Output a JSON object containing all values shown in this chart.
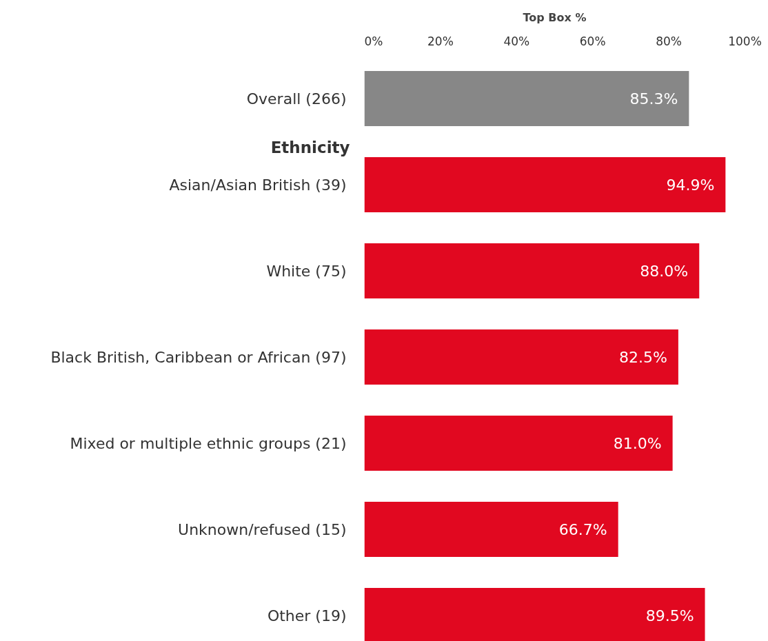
{
  "chart_data": {
    "type": "bar",
    "orientation": "horizontal",
    "xlabel": "Top Box %",
    "categories": [
      "Overall (266)",
      "Asian/Asian British (39)",
      "White (75)",
      "Black British, Caribbean or African (97)",
      "Mixed or multiple ethnic groups (21)",
      "Unknown/refused (15)",
      "Other (19)"
    ],
    "values": [
      85.3,
      94.9,
      88.0,
      82.5,
      81.0,
      66.7,
      89.5
    ],
    "colors": [
      "#878787",
      "#e10820",
      "#e10820",
      "#e10820",
      "#e10820",
      "#e10820",
      "#e10820"
    ],
    "value_labels": [
      "85.3%",
      "94.9%",
      "88.0%",
      "82.5%",
      "81.0%",
      "66.7%",
      "89.5%"
    ],
    "xlim": [
      0,
      100
    ],
    "xticks": [
      {
        "value": 0,
        "label": "0%"
      },
      {
        "value": 20,
        "label": "20%"
      },
      {
        "value": 40,
        "label": "40%"
      },
      {
        "value": 60,
        "label": "60%"
      },
      {
        "value": 80,
        "label": "80%"
      },
      {
        "value": 100,
        "label": "100%"
      }
    ],
    "annotations": [
      "Ethnicity"
    ],
    "grid": false
  }
}
